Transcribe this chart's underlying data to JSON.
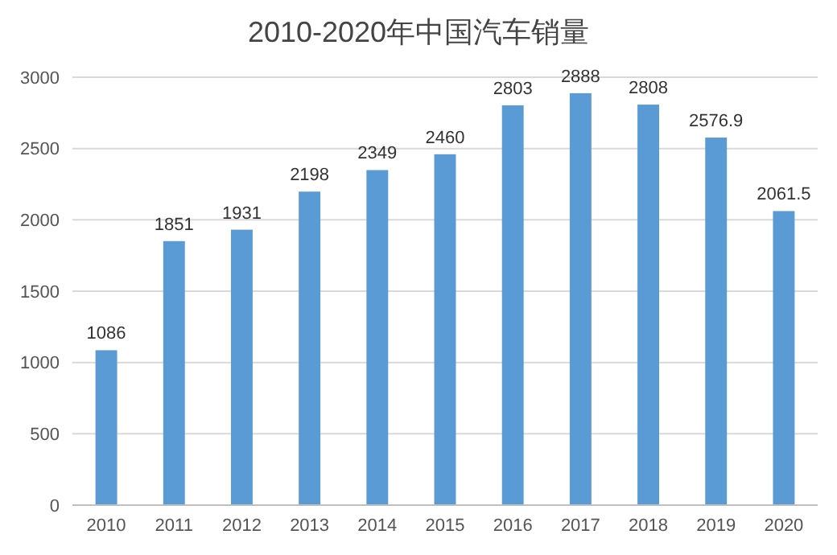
{
  "chart_data": {
    "type": "bar",
    "title": "2010-2020年中国汽车销量",
    "categories": [
      "2010",
      "2011",
      "2012",
      "2013",
      "2014",
      "2015",
      "2016",
      "2017",
      "2018",
      "2019",
      "2020"
    ],
    "values": [
      1086,
      1851,
      1931,
      2198,
      2349,
      2460,
      2803,
      2888,
      2808,
      2576.9,
      2061.5
    ],
    "color": "#5b9bd5",
    "ylim": [
      0,
      3000
    ],
    "yticks": [
      0,
      500,
      1000,
      1500,
      2000,
      2500,
      3000
    ],
    "grid": "y",
    "data_labels": true
  }
}
